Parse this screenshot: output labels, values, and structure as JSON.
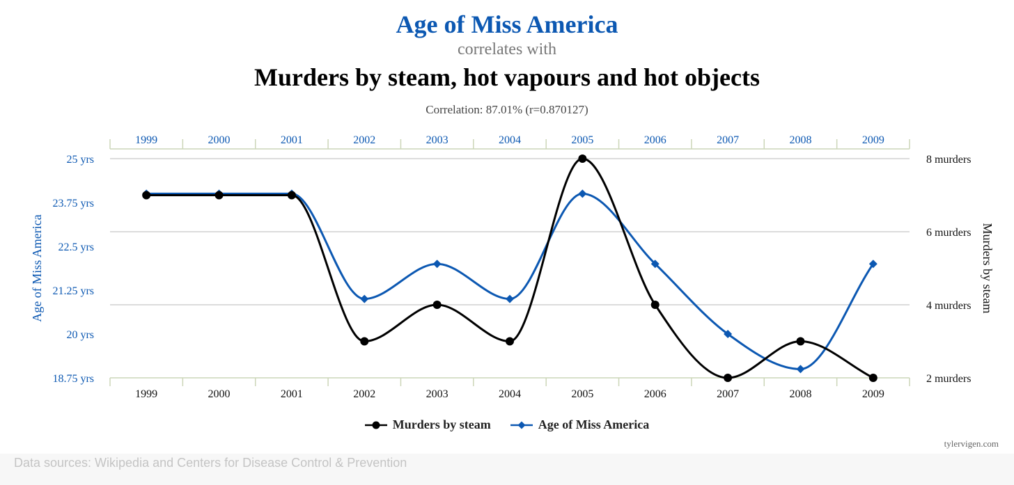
{
  "header": {
    "title_primary": "Age of Miss America",
    "connector": "correlates with",
    "title_secondary": "Murders by steam, hot vapours and hot objects",
    "correlation": "Correlation: 87.01% (r=0.870127)"
  },
  "footer": {
    "credit": "tylervigen.com",
    "sources": "Data sources: Wikipedia and Centers for Disease Control & Prevention"
  },
  "colors": {
    "accent": "#0c58b2",
    "murders": "#000000",
    "age": "#0c58b2",
    "grid": "#d0d0d0",
    "axis": "#ccd6b8"
  },
  "chart_data": {
    "type": "line",
    "categories": [
      "1999",
      "2000",
      "2001",
      "2002",
      "2003",
      "2004",
      "2005",
      "2006",
      "2007",
      "2008",
      "2009"
    ],
    "series": [
      {
        "name": "Murders by steam",
        "axis": "right",
        "marker": "circle",
        "values": [
          7,
          7,
          7,
          3,
          4,
          3,
          8,
          4,
          2,
          3,
          2
        ]
      },
      {
        "name": "Age of Miss America",
        "axis": "left",
        "marker": "diamond",
        "values": [
          24,
          24,
          24,
          21,
          22,
          21,
          24,
          22,
          20,
          19,
          22
        ]
      }
    ],
    "y_left": {
      "label": "Age of Miss America",
      "ticks": [
        "25 yrs",
        "23.75 yrs",
        "22.5 yrs",
        "21.25 yrs",
        "20 yrs",
        "18.75 yrs"
      ],
      "range": [
        18.75,
        25
      ]
    },
    "y_right": {
      "label": "Murders by steam",
      "ticks": [
        "8 murders",
        "6 murders",
        "4 murders",
        "2 murders"
      ],
      "range": [
        2,
        8
      ]
    },
    "grid": true,
    "legend": "bottom-center"
  }
}
